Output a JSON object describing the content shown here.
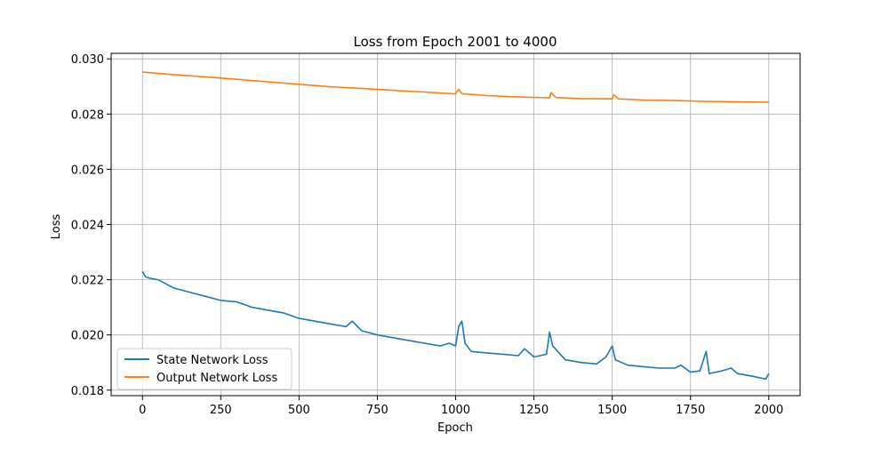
{
  "chart_data": {
    "type": "line",
    "title": "Loss from Epoch 2001 to 4000",
    "xlabel": "Epoch",
    "ylabel": "Loss",
    "xlim": [
      -100,
      2100
    ],
    "ylim": [
      0.0178,
      0.0302
    ],
    "xticks": [
      0,
      250,
      500,
      750,
      1000,
      1250,
      1500,
      1750,
      2000
    ],
    "xtick_labels": [
      "0",
      "250",
      "500",
      "750",
      "1000",
      "1250",
      "1500",
      "1750",
      "2000"
    ],
    "yticks": [
      0.018,
      0.02,
      0.022,
      0.024,
      0.026,
      0.028,
      0.03
    ],
    "ytick_labels": [
      "0.018",
      "0.020",
      "0.022",
      "0.024",
      "0.026",
      "0.028",
      "0.030"
    ],
    "grid": true,
    "legend_position": "lower-left",
    "series": [
      {
        "name": "State Network Loss",
        "color": "#1f77b4",
        "x": [
          0,
          10,
          25,
          50,
          75,
          100,
          150,
          200,
          250,
          300,
          350,
          400,
          450,
          500,
          550,
          600,
          650,
          670,
          700,
          750,
          800,
          850,
          900,
          950,
          980,
          1000,
          1010,
          1020,
          1030,
          1050,
          1100,
          1150,
          1200,
          1220,
          1250,
          1290,
          1300,
          1310,
          1350,
          1400,
          1450,
          1480,
          1500,
          1510,
          1550,
          1600,
          1650,
          1700,
          1720,
          1750,
          1780,
          1800,
          1810,
          1850,
          1880,
          1900,
          1950,
          1990,
          2000
        ],
        "y": [
          0.0223,
          0.0221,
          0.02205,
          0.022,
          0.02185,
          0.0217,
          0.02155,
          0.0214,
          0.02125,
          0.0212,
          0.021,
          0.0209,
          0.0208,
          0.0206,
          0.0205,
          0.0204,
          0.0203,
          0.0205,
          0.02015,
          0.02,
          0.0199,
          0.0198,
          0.0197,
          0.0196,
          0.0197,
          0.0196,
          0.0203,
          0.0205,
          0.0197,
          0.0194,
          0.01935,
          0.0193,
          0.01925,
          0.0195,
          0.0192,
          0.0193,
          0.0201,
          0.0196,
          0.0191,
          0.019,
          0.01895,
          0.0192,
          0.0196,
          0.0191,
          0.0189,
          0.01885,
          0.0188,
          0.0188,
          0.0189,
          0.01865,
          0.0187,
          0.0194,
          0.0186,
          0.0187,
          0.0188,
          0.0186,
          0.0185,
          0.0184,
          0.0186
        ]
      },
      {
        "name": "Output Network Loss",
        "color": "#ff7f0e",
        "x": [
          0,
          100,
          200,
          300,
          400,
          500,
          600,
          700,
          800,
          900,
          1000,
          1010,
          1020,
          1100,
          1200,
          1300,
          1305,
          1320,
          1400,
          1500,
          1505,
          1520,
          1600,
          1700,
          1800,
          1900,
          2000
        ],
        "y": [
          0.02952,
          0.02943,
          0.02935,
          0.02926,
          0.02917,
          0.02908,
          0.02899,
          0.02893,
          0.02886,
          0.0288,
          0.02873,
          0.0289,
          0.02874,
          0.02867,
          0.02862,
          0.02859,
          0.02878,
          0.0286,
          0.02856,
          0.02855,
          0.0287,
          0.02855,
          0.02851,
          0.02849,
          0.02846,
          0.02844,
          0.02843
        ]
      }
    ]
  }
}
